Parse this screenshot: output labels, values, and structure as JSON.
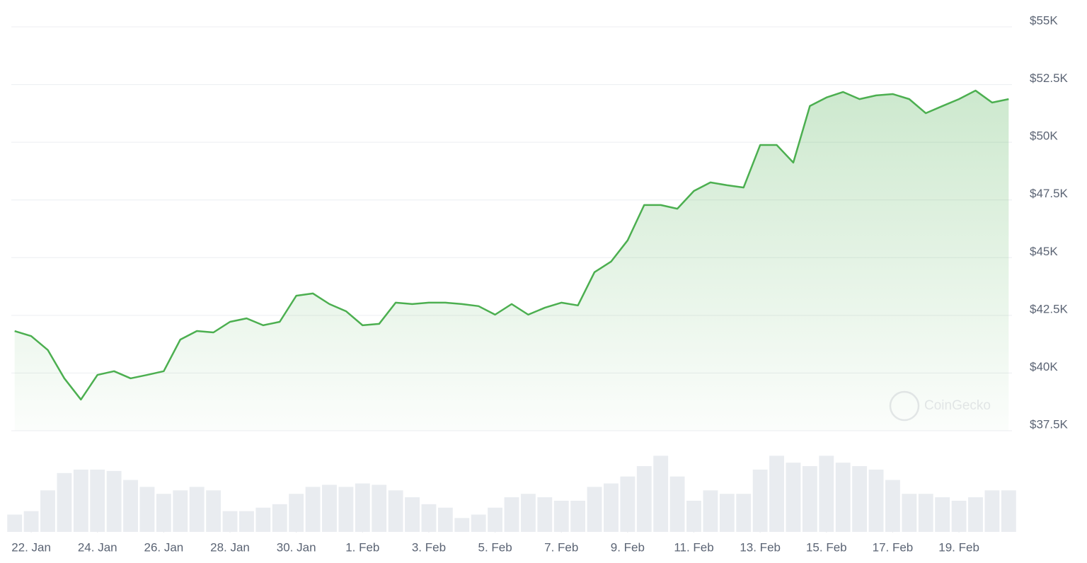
{
  "chart_data": {
    "type": "line",
    "watermark": "CoinGecko",
    "x": [
      21.5,
      22,
      22.5,
      23,
      23.5,
      24,
      24.5,
      25,
      25.5,
      26,
      26.5,
      27,
      27.5,
      28,
      28.5,
      29,
      29.5,
      30,
      30.5,
      31,
      31.5,
      32,
      32.5,
      33,
      33.5,
      34,
      34.5,
      35,
      35.5,
      36,
      36.5,
      37,
      37.5,
      38,
      38.5,
      39,
      39.5,
      40,
      40.5,
      41,
      41.5,
      42,
      42.5,
      43,
      43.5,
      44,
      44.5,
      45,
      45.5,
      46,
      46.5,
      47,
      47.5,
      48,
      48.5,
      49,
      49.5,
      50,
      50.5,
      51,
      51.5
    ],
    "series": [
      {
        "color": "#4caf50",
        "values": [
          41820,
          41600,
          41000,
          39770,
          38850,
          39920,
          40080,
          39770,
          39920,
          40080,
          41450,
          41820,
          41760,
          42220,
          42370,
          42070,
          42220,
          43350,
          43450,
          42990,
          42680,
          42070,
          42130,
          43050,
          42990,
          43050,
          43050,
          42990,
          42900,
          42530,
          42990,
          42530,
          42830,
          43050,
          42930,
          44370,
          44830,
          45750,
          47280,
          47280,
          47120,
          47890,
          48260,
          48140,
          48040,
          49880,
          49880,
          49120,
          51570,
          51940,
          52180,
          51870,
          52030,
          52090,
          51870,
          51260,
          51570,
          51870,
          52240,
          51720,
          51870
        ]
      },
      {
        "axis": "y2",
        "color": "#e9ecf0",
        "values": [
          25,
          30,
          60,
          85,
          90,
          90,
          88,
          75,
          65,
          55,
          60,
          65,
          60,
          30,
          30,
          35,
          40,
          55,
          65,
          68,
          65,
          70,
          68,
          60,
          50,
          40,
          35,
          20,
          25,
          35,
          50,
          55,
          50,
          45,
          45,
          65,
          70,
          80,
          95,
          110,
          80,
          45,
          60,
          55,
          55,
          90,
          110,
          100,
          95,
          110,
          100,
          95,
          90,
          75,
          55,
          55,
          50,
          45,
          50,
          60,
          60
        ]
      }
    ],
    "xlim": [
      21.4,
      51.6
    ],
    "xticks": [
      {
        "value": 22,
        "label": "22. Jan"
      },
      {
        "value": 24,
        "label": "24. Jan"
      },
      {
        "value": 26,
        "label": "26. Jan"
      },
      {
        "value": 28,
        "label": "28. Jan"
      },
      {
        "value": 30,
        "label": "30. Jan"
      },
      {
        "value": 32,
        "label": "1. Feb"
      },
      {
        "value": 34,
        "label": "3. Feb"
      },
      {
        "value": 36,
        "label": "5. Feb"
      },
      {
        "value": 38,
        "label": "7. Feb"
      },
      {
        "value": 40,
        "label": "9. Feb"
      },
      {
        "value": 42,
        "label": "11. Feb"
      },
      {
        "value": 44,
        "label": "13. Feb"
      },
      {
        "value": 46,
        "label": "15. Feb"
      },
      {
        "value": 48,
        "label": "17. Feb"
      },
      {
        "value": 50,
        "label": "19. Feb"
      }
    ],
    "ylim": [
      37500,
      55000
    ],
    "yticks": [
      {
        "value": 37500,
        "label": "$37.5K"
      },
      {
        "value": 40000,
        "label": "$40K"
      },
      {
        "value": 42500,
        "label": "$42.5K"
      },
      {
        "value": 45000,
        "label": "$45K"
      },
      {
        "value": 47500,
        "label": "$47.5K"
      },
      {
        "value": 50000,
        "label": "$50K"
      },
      {
        "value": 52500,
        "label": "$52.5K"
      },
      {
        "value": 55000,
        "label": "$55K"
      }
    ],
    "y2lim": [
      0,
      140
    ],
    "grid": true
  }
}
